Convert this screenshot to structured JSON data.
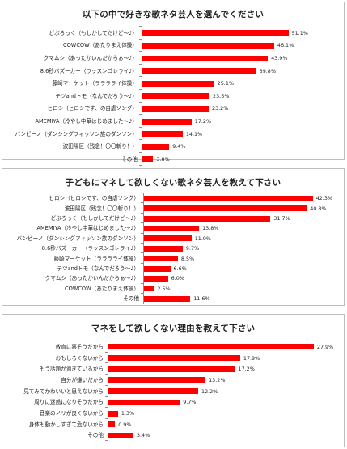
{
  "chart_data": [
    {
      "type": "bar",
      "orientation": "horizontal",
      "title": "以下の中で好きな歌ネタ芸人を選んでください",
      "categories": [
        "どぶろっく（もしかしてだけど〜♪）",
        "COWCOW（あたりまえ体操）",
        "クマムシ（あったかいんだからぁ〜♪）",
        "8.6秒バズーカー（ラッスンゴレライ♪）",
        "藤崎マーケット（ラララライ体操）",
        "テツandトモ（なんでだろう〜♪）",
        "ヒロシ（ヒロシです、の自虐ソング）",
        "AMEMIYA（冷やし中華はじめました〜♪）",
        "バンビーノ（ダンシングフィッソン族のダンソン）",
        "波田陽区（残念！〇〇斬り！）",
        "その他"
      ],
      "values": [
        51.1,
        46.1,
        43.9,
        39.8,
        25.1,
        23.5,
        23.2,
        17.2,
        14.1,
        9.4,
        3.8
      ],
      "labels": [
        "51.1%",
        "46.1%",
        "43.9%",
        "39.8%",
        "25.1%",
        "23.5%",
        "23.2%",
        "17.2%",
        "14.1%",
        "9.4%",
        "3.8%"
      ],
      "xlim": [
        0,
        60
      ],
      "grid": false,
      "bar_color": "#ff0000"
    },
    {
      "type": "bar",
      "orientation": "horizontal",
      "title": "子どもにマネして欲しくない歌ネタ芸人を教えて下さい",
      "categories": [
        "ヒロシ（ヒロシです、の自虐ソング）",
        "波田陽区（残念！〇〇斬り！）",
        "どぶろっく（もしかしてだけど〜♪）",
        "AMEMIYA（冷やし中華はじめました〜♪）",
        "バンビーノ（ダンシングフィッソン族のダンソン）",
        "8.6秒バズーカー（ラッスンゴレライ♪）",
        "藤崎マーケット（ラララライ体操）",
        "テツandトモ（なんでだろう〜♪）",
        "クマムシ（あったかいんだからぁ〜♪）",
        "COWCOW（あたりまえ体操）",
        "その他"
      ],
      "values": [
        42.3,
        40.8,
        31.7,
        13.8,
        11.9,
        9.7,
        8.5,
        6.6,
        6.0,
        2.5,
        11.6
      ],
      "labels": [
        "42.3%",
        "40.8%",
        "31.7%",
        "13.8%",
        "11.9%",
        "9.7%",
        "8.5%",
        "6.6%",
        "6.0%",
        "2.5%",
        "11.6%"
      ],
      "xlim": [
        0,
        45
      ],
      "grid": false,
      "bar_color": "#ff0000"
    },
    {
      "type": "bar",
      "orientation": "horizontal",
      "title": "マネをして欲しくない理由を教えて下さい",
      "categories": [
        "教育に悪そうだから",
        "おもしろくないから",
        "もう話題が過ぎているから",
        "自分が嫌いだから",
        "見てみてかわいいと思えないから",
        "周りに迷惑になりそうだから",
        "音楽のノリが良くないから",
        "身体も動かしすぎて危ないから",
        "その他"
      ],
      "values": [
        27.9,
        17.9,
        17.2,
        13.2,
        12.2,
        9.7,
        1.3,
        0.9,
        3.4
      ],
      "labels": [
        "27.9%",
        "17.9%",
        "17.2%",
        "13.2%",
        "12.2%",
        "9.7%",
        "1.3%",
        "0.9%",
        "3.4%"
      ],
      "xlim": [
        0,
        30
      ],
      "grid": false,
      "bar_color": "#ff0000"
    }
  ]
}
